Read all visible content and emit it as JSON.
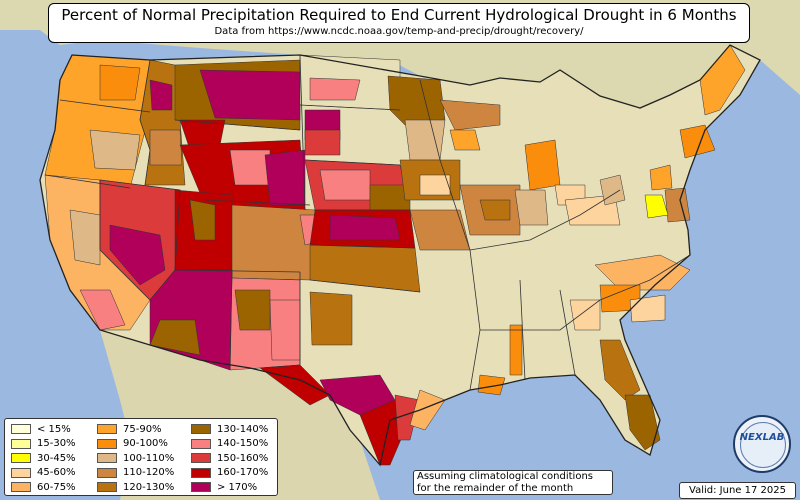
{
  "title": "Percent of Normal Precipitation Required to End Current Hydrological Drought in 6 Months",
  "subtitle": "Data from https://www.ncdc.noaa.gov/temp-and-precip/drought/recovery/",
  "note_line1": "Assuming climatological conditions",
  "note_line2": "for the remainder of the month",
  "valid": "Valid: June 17 2025",
  "logo_text": "NEXLAB",
  "colors": {
    "land": "#e6dfb8",
    "water": "#9bb8e0",
    "border": "#333333"
  },
  "legend": [
    {
      "label": "< 15%",
      "color": "#ffffd9"
    },
    {
      "label": "15-30%",
      "color": "#ffff99"
    },
    {
      "label": "30-45%",
      "color": "#ffff00"
    },
    {
      "label": "45-60%",
      "color": "#fdd49e"
    },
    {
      "label": "60-75%",
      "color": "#fdb462"
    },
    {
      "label": "75-90%",
      "color": "#fea42a"
    },
    {
      "label": "90-100%",
      "color": "#fb8d0c"
    },
    {
      "label": "100-110%",
      "color": "#deb887"
    },
    {
      "label": "110-120%",
      "color": "#cd853f"
    },
    {
      "label": "120-130%",
      "color": "#b8720f"
    },
    {
      "label": "130-140%",
      "color": "#9c6400"
    },
    {
      "label": "140-150%",
      "color": "#f88080"
    },
    {
      "label": "150-160%",
      "color": "#dc3b3b"
    },
    {
      "label": "160-170%",
      "color": "#c00000"
    },
    {
      "label": "> 170%",
      "color": "#b0005a"
    }
  ]
}
